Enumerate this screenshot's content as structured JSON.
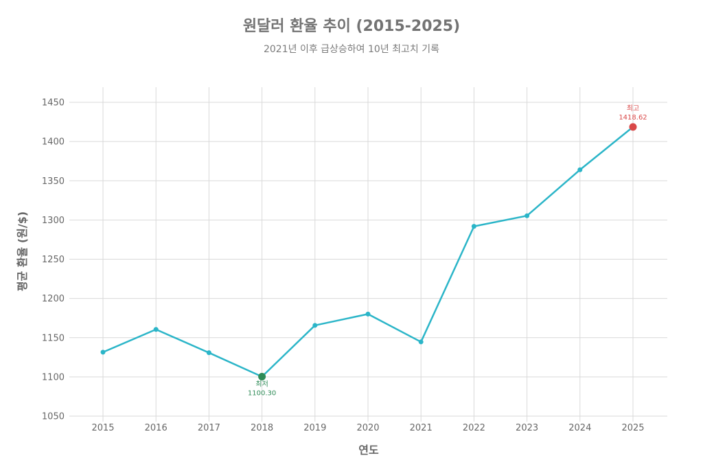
{
  "chart_data": {
    "type": "line",
    "title": "원달러 환율 추이 (2015-2025)",
    "subtitle": "2021년 이후 급상승하여 10년 최고치 기록",
    "xlabel": "연도",
    "ylabel": "평균 환율 (원/$)",
    "x": [
      2015,
      2016,
      2017,
      2018,
      2019,
      2020,
      2021,
      2022,
      2023,
      2024,
      2025
    ],
    "values": [
      1131.5,
      1160.5,
      1130.8,
      1100.3,
      1165.7,
      1180.1,
      1144.6,
      1291.9,
      1305.4,
      1364.0,
      1418.62
    ],
    "ylim": [
      1050,
      1470
    ],
    "yticks": [
      1050,
      1100,
      1150,
      1200,
      1250,
      1300,
      1350,
      1400,
      1450
    ],
    "grid": true,
    "line_color": "#2bb5c8",
    "annotations": [
      {
        "label": "최저",
        "value_text": "1100.30",
        "index": 3,
        "color": "#2e8b57",
        "position": "below"
      },
      {
        "label": "최고",
        "value_text": "1418.62",
        "index": 10,
        "color": "#d94848",
        "position": "above"
      }
    ]
  }
}
